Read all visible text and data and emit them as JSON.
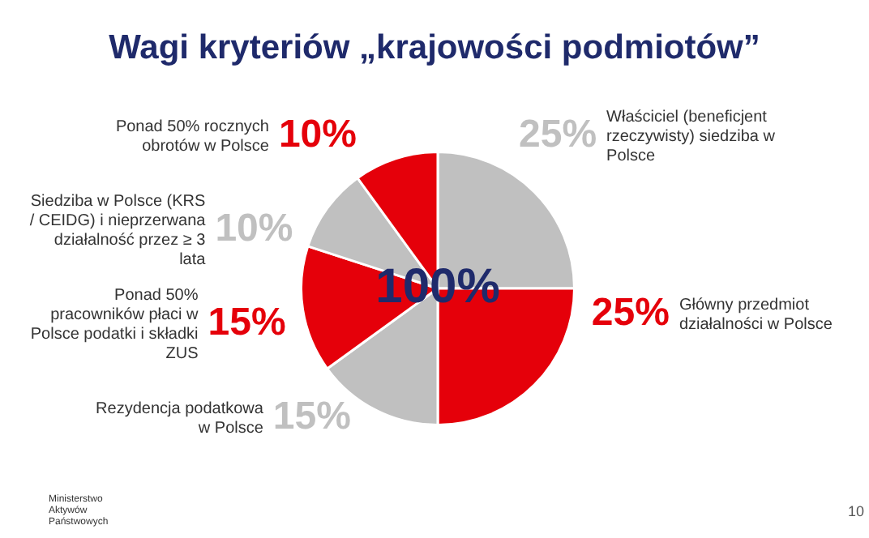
{
  "chart_data": {
    "type": "pie",
    "title": "Wagi kryteriów „krajowości podmiotów”",
    "categories": [
      "Właściciel (beneficjent rzeczywisty) siedziba w Polsce",
      "Główny przedmiot działalności w Polsce",
      "Rezydencja podatkowa w Polsce",
      "Ponad 50% pracowników płaci w Polsce podatki i składki ZUS",
      "Siedziba w Polsce (KRS / CEIDG) i nieprzerwana działalność przez ≥ 3 lata",
      "Ponad 50% rocznych obrotów w Polsce"
    ],
    "values": [
      25,
      25,
      15,
      15,
      10,
      10
    ],
    "colors": [
      "#c0c0c0",
      "#e5000a",
      "#c0c0c0",
      "#e5000a",
      "#c0c0c0",
      "#e5000a"
    ],
    "value_labels": [
      "25%",
      "25%",
      "15%",
      "15%",
      "10%",
      "10%"
    ],
    "annotations": [
      "100%",
      "Ministerstwo Aktywów Państwowych",
      "10"
    ],
    "legend": false
  }
}
